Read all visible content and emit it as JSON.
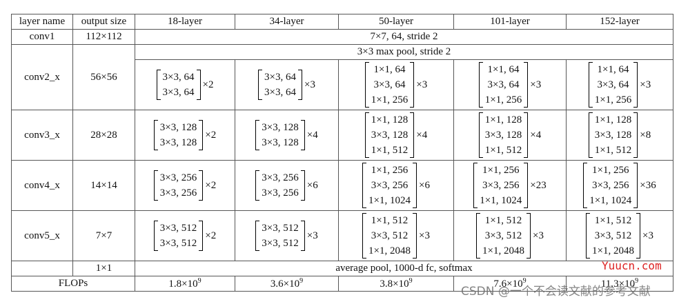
{
  "table": {
    "header": [
      "layer name",
      "output size",
      "18-layer",
      "34-layer",
      "50-layer",
      "101-layer",
      "152-layer"
    ],
    "rows": [
      {
        "name": "conv1",
        "size": "112×112",
        "span": "7×7, 64, stride 2"
      },
      {
        "name": "conv2_x",
        "size": "56×56",
        "span": "3×3 max pool, stride 2",
        "blocks": [
          {
            "lines": [
              "3×3, 64",
              "3×3, 64"
            ],
            "times": "×2"
          },
          {
            "lines": [
              "3×3, 64",
              "3×3, 64"
            ],
            "times": "×3"
          },
          {
            "lines": [
              "1×1, 64",
              "3×3, 64",
              "1×1, 256"
            ],
            "times": "×3"
          },
          {
            "lines": [
              "1×1, 64",
              "3×3, 64",
              "1×1, 256"
            ],
            "times": "×3"
          },
          {
            "lines": [
              "1×1, 64",
              "3×3, 64",
              "1×1, 256"
            ],
            "times": "×3"
          }
        ]
      },
      {
        "name": "conv3_x",
        "size": "28×28",
        "blocks": [
          {
            "lines": [
              "3×3, 128",
              "3×3, 128"
            ],
            "times": "×2"
          },
          {
            "lines": [
              "3×3, 128",
              "3×3, 128"
            ],
            "times": "×4"
          },
          {
            "lines": [
              "1×1, 128",
              "3×3, 128",
              "1×1, 512"
            ],
            "times": "×4"
          },
          {
            "lines": [
              "1×1, 128",
              "3×3, 128",
              "1×1, 512"
            ],
            "times": "×4"
          },
          {
            "lines": [
              "1×1, 128",
              "3×3, 128",
              "1×1, 512"
            ],
            "times": "×8"
          }
        ]
      },
      {
        "name": "conv4_x",
        "size": "14×14",
        "blocks": [
          {
            "lines": [
              "3×3, 256",
              "3×3, 256"
            ],
            "times": "×2"
          },
          {
            "lines": [
              "3×3, 256",
              "3×3, 256"
            ],
            "times": "×6"
          },
          {
            "lines": [
              "1×1, 256",
              "3×3, 256",
              "1×1, 1024"
            ],
            "times": "×6"
          },
          {
            "lines": [
              "1×1, 256",
              "3×3, 256",
              "1×1, 1024"
            ],
            "times": "×23"
          },
          {
            "lines": [
              "1×1, 256",
              "3×3, 256",
              "1×1, 1024"
            ],
            "times": "×36"
          }
        ]
      },
      {
        "name": "conv5_x",
        "size": "7×7",
        "blocks": [
          {
            "lines": [
              "3×3, 512",
              "3×3, 512"
            ],
            "times": "×2"
          },
          {
            "lines": [
              "3×3, 512",
              "3×3, 512"
            ],
            "times": "×3"
          },
          {
            "lines": [
              "1×1, 512",
              "3×3, 512",
              "1×1, 2048"
            ],
            "times": "×3"
          },
          {
            "lines": [
              "1×1, 512",
              "3×3, 512",
              "1×1, 2048"
            ],
            "times": "×3"
          },
          {
            "lines": [
              "1×1, 512",
              "3×3, 512",
              "1×1, 2048"
            ],
            "times": "×3"
          }
        ]
      },
      {
        "size": "1×1",
        "span": "average pool, 1000-d fc, softmax"
      },
      {
        "name": "FLOPs",
        "flops": [
          {
            "base": "1.8×10",
            "exp": "9"
          },
          {
            "base": "3.6×10",
            "exp": "9"
          },
          {
            "base": "3.8×10",
            "exp": "9"
          },
          {
            "base": "7.6×10",
            "exp": "9"
          },
          {
            "base": "11.3×10",
            "exp": "9"
          }
        ]
      }
    ]
  },
  "watermarks": [
    "Yuucn.com",
    "CSDN @一个不会读文献的参考文献"
  ]
}
